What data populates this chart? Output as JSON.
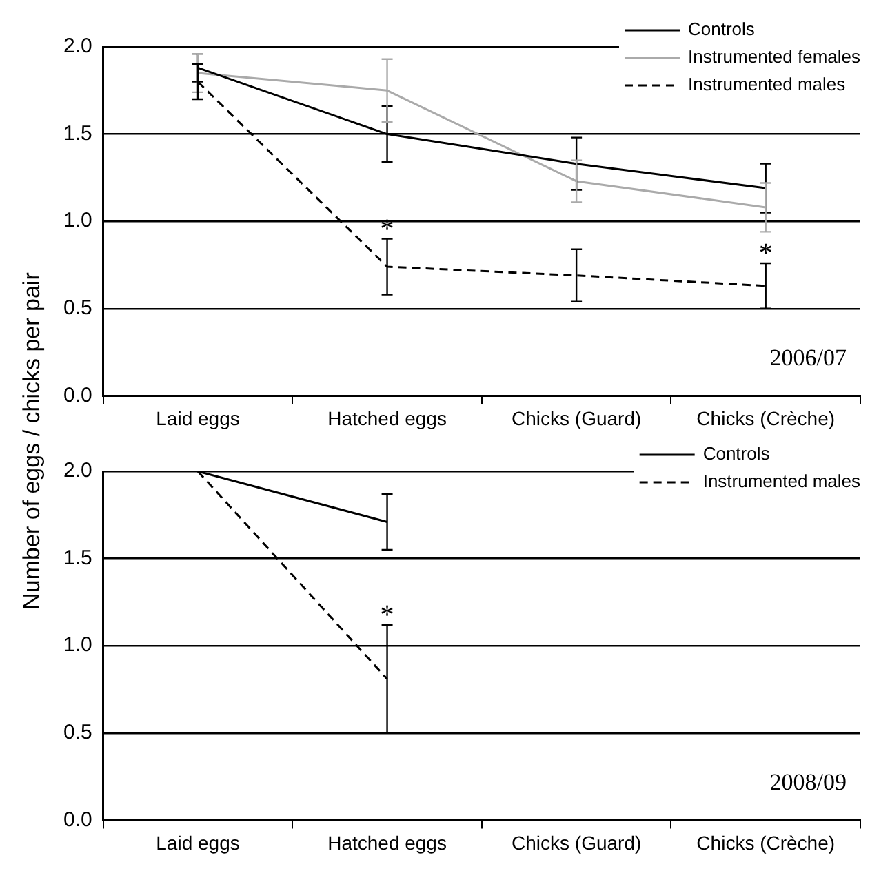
{
  "chart_data": [
    {
      "type": "line",
      "ylabel": "Number of eggs / chicks per pair",
      "categories": [
        "Laid eggs",
        "Hatched eggs",
        "Chicks (Guard)",
        "Chicks (Crèche)"
      ],
      "series": [
        {
          "name": "Controls",
          "color": "#000000",
          "values": [
            1.88,
            1.5,
            1.33,
            1.19
          ],
          "errors": [
            0.08,
            0.16,
            0.15,
            0.14
          ]
        },
        {
          "name": "Instrumented females",
          "color": "#aaaaaa",
          "values": [
            1.85,
            1.75,
            1.23,
            1.08
          ],
          "errors": [
            0.11,
            0.18,
            0.12,
            0.14
          ]
        },
        {
          "name": "Instrumented males",
          "color": "#000000",
          "line_style": "dashed",
          "values": [
            1.8,
            0.74,
            0.69,
            0.63
          ],
          "errors": [
            0.1,
            0.16,
            0.15,
            0.13
          ]
        }
      ],
      "ylim": [
        0,
        2
      ],
      "yticks": [
        {
          "value": 0,
          "label": "0.0"
        },
        {
          "value": 0.5,
          "label": "0.5"
        },
        {
          "value": 1,
          "label": "1.0"
        },
        {
          "value": 1.5,
          "label": "1.5"
        },
        {
          "value": 2,
          "label": "2.0"
        }
      ],
      "grid": "y",
      "legend": "top right",
      "marker": "none",
      "annotations": [
        {
          "text": "*",
          "x": "Hatched eggs",
          "y": 0.9
        },
        {
          "text": "*",
          "x": "Chicks (Crèche)",
          "y": 0.76
        },
        "2006/07"
      ]
    },
    {
      "type": "line",
      "categories": [
        "Laid eggs",
        "Hatched eggs",
        "Chicks (Guard)",
        "Chicks (Crèche)"
      ],
      "series": [
        {
          "name": "Controls",
          "color": "#000000",
          "values": [
            2.0,
            1.71,
            null,
            null
          ],
          "errors": [
            null,
            0.16,
            null,
            null
          ]
        },
        {
          "name": "Instrumented males",
          "color": "#000000",
          "line_style": "dashed",
          "values": [
            2.0,
            0.81,
            null,
            null
          ],
          "errors": [
            null,
            0.31,
            null,
            null
          ]
        }
      ],
      "ylim": [
        0,
        2
      ],
      "yticks": [
        {
          "value": 0,
          "label": "0.0"
        },
        {
          "value": 0.5,
          "label": "0.5"
        },
        {
          "value": 1,
          "label": "1.0"
        },
        {
          "value": 1.5,
          "label": "1.5"
        },
        {
          "value": 2,
          "label": "2.0"
        }
      ],
      "grid": "y",
      "legend": "top right",
      "marker": "none",
      "annotations": [
        {
          "text": "*",
          "x": "Hatched eggs",
          "y": 1.12
        },
        "2008/09"
      ]
    }
  ]
}
